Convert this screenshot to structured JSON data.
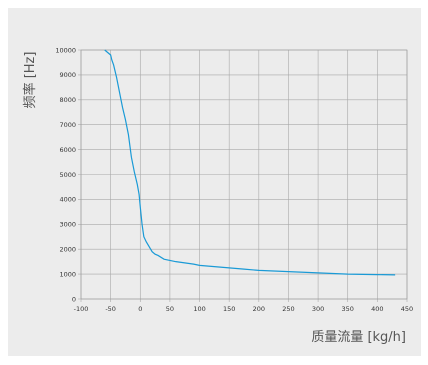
{
  "chart_data": {
    "type": "line",
    "title": "",
    "xlabel": "质量流量 [kg/h]",
    "ylabel": "频率 [Hz]",
    "xlim": [
      -100,
      450
    ],
    "ylim": [
      0,
      10000
    ],
    "grid": true,
    "line_color": "#1a9ad6",
    "background_color": "#ececec",
    "grid_color": "#a8a8a8",
    "x_ticks": [
      "-100",
      "-50",
      "0",
      "50",
      "100",
      "150",
      "200",
      "250",
      "300",
      "350",
      "400",
      "450"
    ],
    "y_ticks": [
      "0",
      "1000",
      "2000",
      "3000",
      "4000",
      "5000",
      "6000",
      "7000",
      "8000",
      "9000",
      "10000"
    ],
    "series": [
      {
        "x": [
          -60,
          -55,
          -50,
          -48,
          -45,
          -40,
          -35,
          -30,
          -25,
          -20,
          -15,
          -10,
          -5,
          -2,
          0,
          3,
          6,
          10,
          15,
          20,
          25,
          30,
          40,
          50,
          60,
          75,
          90,
          100,
          125,
          150,
          175,
          200,
          250,
          300,
          350,
          400,
          430
        ],
        "y": [
          10000,
          9900,
          9800,
          9600,
          9400,
          8900,
          8300,
          7700,
          7200,
          6600,
          5700,
          5100,
          4600,
          4200,
          3700,
          3000,
          2500,
          2300,
          2100,
          1900,
          1800,
          1750,
          1600,
          1550,
          1500,
          1450,
          1400,
          1350,
          1300,
          1250,
          1200,
          1150,
          1100,
          1050,
          1000,
          980,
          970
        ]
      }
    ]
  }
}
